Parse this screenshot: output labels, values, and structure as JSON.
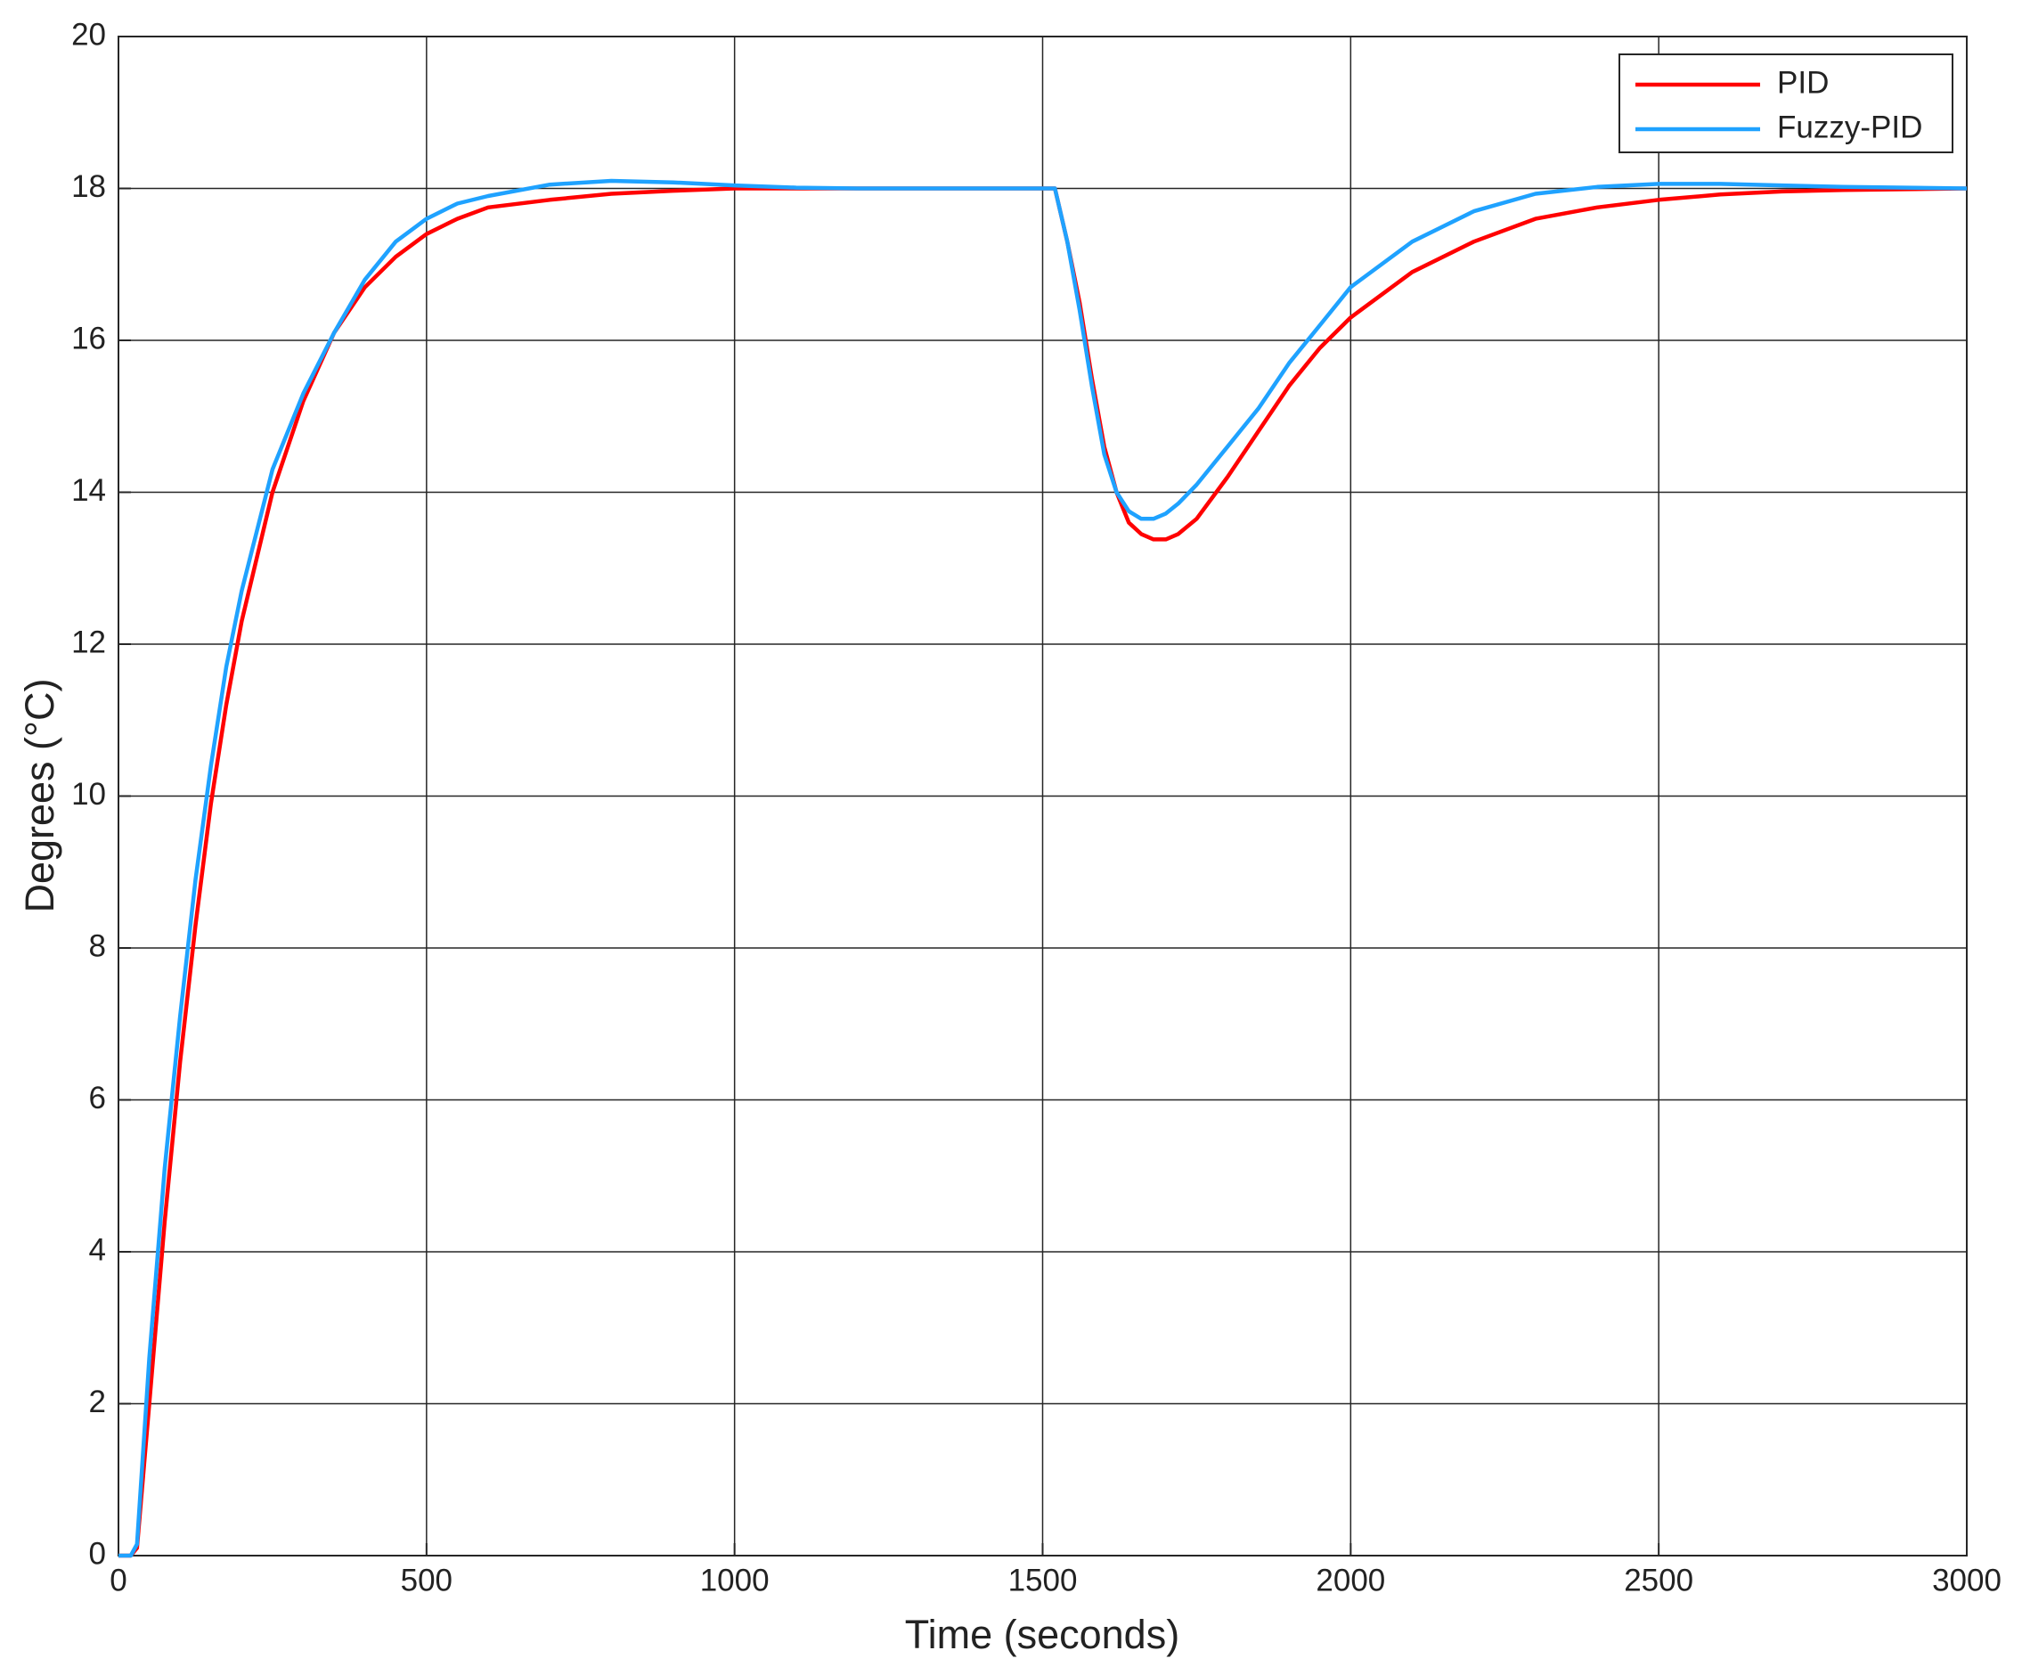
{
  "chart_data": {
    "type": "line",
    "xlabel": "Time (seconds)",
    "ylabel": "Degrees (°C)",
    "x": [
      0,
      20,
      30,
      50,
      75,
      100,
      125,
      150,
      175,
      200,
      250,
      300,
      350,
      400,
      450,
      500,
      550,
      600,
      700,
      800,
      900,
      1000,
      1100,
      1200,
      1300,
      1400,
      1520,
      1540,
      1560,
      1580,
      1600,
      1620,
      1640,
      1660,
      1680,
      1700,
      1720,
      1750,
      1800,
      1850,
      1900,
      1950,
      2000,
      2100,
      2200,
      2300,
      2400,
      2500,
      2600,
      2700,
      2800,
      3000
    ],
    "series": [
      {
        "name": "PID",
        "color": "#ff0000",
        "values": [
          0,
          0,
          0.1,
          2,
          4.4,
          6.5,
          8.3,
          9.9,
          11.2,
          12.3,
          14.0,
          15.2,
          16.1,
          16.7,
          17.1,
          17.4,
          17.6,
          17.75,
          17.85,
          17.93,
          17.97,
          18,
          18,
          18,
          18,
          18,
          18,
          17.3,
          16.5,
          15.5,
          14.6,
          14.0,
          13.6,
          13.45,
          13.38,
          13.38,
          13.45,
          13.65,
          14.2,
          14.8,
          15.4,
          15.9,
          16.3,
          16.9,
          17.3,
          17.6,
          17.75,
          17.85,
          17.92,
          17.96,
          17.98,
          18
        ]
      },
      {
        "name": "Fuzzy-PID",
        "color": "#1fa2ff",
        "values": [
          0,
          0,
          0.15,
          2.6,
          5.1,
          7.1,
          8.9,
          10.4,
          11.7,
          12.7,
          14.3,
          15.3,
          16.1,
          16.8,
          17.3,
          17.6,
          17.8,
          17.9,
          18.05,
          18.1,
          18.08,
          18.04,
          18.01,
          18,
          18,
          18,
          18,
          17.3,
          16.4,
          15.4,
          14.5,
          14.0,
          13.75,
          13.65,
          13.65,
          13.72,
          13.85,
          14.1,
          14.6,
          15.1,
          15.7,
          16.2,
          16.7,
          17.3,
          17.7,
          17.93,
          18.02,
          18.06,
          18.06,
          18.04,
          18.02,
          18
        ]
      }
    ],
    "xlim": [
      0,
      3000
    ],
    "xticks": [
      0,
      500,
      1000,
      1500,
      2000,
      2500,
      3000
    ],
    "ylim": [
      0,
      20
    ],
    "yticks": [
      0,
      2,
      4,
      6,
      8,
      10,
      12,
      14,
      16,
      18,
      20
    ],
    "grid": true,
    "legend": "upper right"
  }
}
